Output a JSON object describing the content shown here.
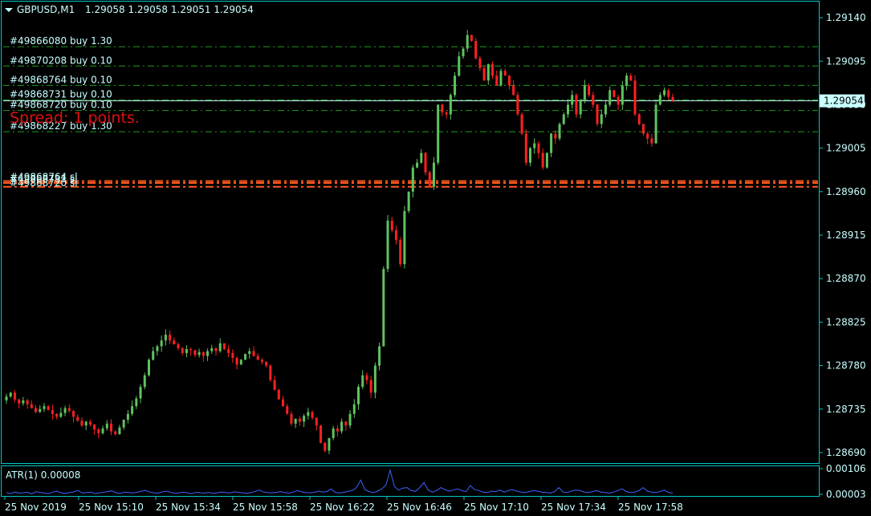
{
  "header": {
    "symbol": "GBPUSD,M1",
    "ohlc": "1.29058 1.29058 1.29051 1.29054"
  },
  "spread_text": "Spread: 1 points.",
  "colors": {
    "frame": "#00c8c8",
    "text": "#c8ffff",
    "bull": "#5fc35f",
    "bear": "#ff2020",
    "order_line": "#1e9e1e",
    "stop_line": "#ff5a1e",
    "spread": "#e01010",
    "atr": "#3c64ff",
    "bid_box_bg": "#c8ffff",
    "bid_box_text": "#000000"
  },
  "orders": [
    {
      "label": "#49866080 buy 1.30",
      "price": 1.2911
    },
    {
      "label": "#49870208 buy 0.10",
      "price": 1.2909
    },
    {
      "label": "#49868764 buy 0.10",
      "price": 1.2907
    },
    {
      "label": "#49868731 buy 0.10",
      "price": 1.29055
    },
    {
      "label": "#49868720 buy 0.10",
      "price": 1.29044
    },
    {
      "label": "#49868227 buy 1.30",
      "price": 1.29022
    }
  ],
  "stops": [
    {
      "label": "#49868764 sl",
      "price": 1.28971
    },
    {
      "label": "#49868731 sl",
      "price": 1.28969
    },
    {
      "label": "#49868720 sl",
      "price": 1.28965
    }
  ],
  "current_price": {
    "value": 1.29054,
    "label": "1.29054"
  },
  "price_ticks": [
    "1.29140",
    "1.29095",
    "1.29050",
    "1.29005",
    "1.28960",
    "1.28915",
    "1.28870",
    "1.28825",
    "1.28780",
    "1.28735",
    "1.28690"
  ],
  "time_ticks": [
    "25 Nov 2019",
    "25 Nov 15:10",
    "25 Nov 15:34",
    "25 Nov 15:58",
    "25 Nov 16:22",
    "25 Nov 16:46",
    "25 Nov 17:10",
    "25 Nov 17:34",
    "25 Nov 17:58"
  ],
  "atr": {
    "label": "ATR(1) 0.00008",
    "ticks": [
      "0.00106",
      "0.00003"
    ]
  },
  "chart_data": {
    "type": "candlestick",
    "title": "GBPUSD,M1",
    "ylim": [
      1.2868,
      1.29155
    ],
    "closes": [
      1.28748,
      1.28752,
      1.28745,
      1.28741,
      1.28744,
      1.2874,
      1.28736,
      1.28732,
      1.28735,
      1.28738,
      1.28734,
      1.2873,
      1.28727,
      1.28731,
      1.28736,
      1.28733,
      1.28727,
      1.28723,
      1.28718,
      1.28722,
      1.28719,
      1.28714,
      1.2871,
      1.28715,
      1.2872,
      1.28712,
      1.28709,
      1.28716,
      1.28724,
      1.2873,
      1.28738,
      1.28746,
      1.28758,
      1.2877,
      1.28786,
      1.28795,
      1.288,
      1.28806,
      1.28812,
      1.28806,
      1.28802,
      1.28798,
      1.28793,
      1.28797,
      1.28796,
      1.28791,
      1.28794,
      1.2879,
      1.28795,
      1.28798,
      1.28795,
      1.28803,
      1.28797,
      1.28793,
      1.28788,
      1.28781,
      1.28786,
      1.28792,
      1.28795,
      1.2879,
      1.28786,
      1.28784,
      1.2878,
      1.28765,
      1.28755,
      1.28745,
      1.28738,
      1.2873,
      1.2872,
      1.28725,
      1.28722,
      1.28728,
      1.28732,
      1.28726,
      1.28718,
      1.287,
      1.28692,
      1.28705,
      1.28715,
      1.28712,
      1.28722,
      1.28718,
      1.2873,
      1.2874,
      1.28758,
      1.2877,
      1.28765,
      1.28752,
      1.2878,
      1.288,
      1.2888,
      1.2893,
      1.2892,
      1.2891,
      1.28885,
      1.2894,
      1.2896,
      1.28985,
      1.2899,
      1.29,
      1.2898,
      1.28965,
      1.2899,
      1.2905,
      1.29042,
      1.2904,
      1.2906,
      1.2908,
      1.291,
      1.29108,
      1.29122,
      1.29116,
      1.29098,
      1.29088,
      1.29075,
      1.29092,
      1.2908,
      1.2907,
      1.29085,
      1.2908,
      1.2907,
      1.2906,
      1.2904,
      1.2902,
      1.2899,
      1.29005,
      1.2901,
      1.29,
      1.28985,
      1.29,
      1.2902,
      1.29015,
      1.2903,
      1.2904,
      1.2905,
      1.2906,
      1.2904,
      1.29055,
      1.2907,
      1.2906,
      1.2905,
      1.2903,
      1.2904,
      1.2905,
      1.29065,
      1.29058,
      1.2905,
      1.2907,
      1.2908,
      1.29075,
      1.2904,
      1.2903,
      1.2902,
      1.29015,
      1.2901,
      1.2905,
      1.2906,
      1.29065,
      1.29058,
      1.29054
    ],
    "atr": [
      0.0001,
      6e-05,
      0.00012,
      8e-05,
      9e-05,
      0.00011,
      5e-05,
      0.00014,
      0.0001,
      8e-05,
      6e-05,
      0.00012,
      0.00016,
      9e-05,
      7e-05,
      0.0001,
      0.00013,
      0.00018,
      8e-05,
      0.0001,
      0.00012,
      6e-05,
      9e-05,
      0.00011,
      0.00014,
      0.00017,
      9e-05,
      7e-05,
      0.00012,
      0.0001,
      8e-05,
      0.00011,
      0.00015,
      0.00019,
      0.00012,
      9e-05,
      8e-05,
      0.00013,
      0.00016,
      0.0001,
      7e-05,
      9e-05,
      0.00012,
      8e-05,
      6e-05,
      0.00011,
      9e-05,
      8e-05,
      0.0001,
      7e-05,
      9e-05,
      0.00012,
      0.0001,
      8e-05,
      0.00013,
      0.00011,
      9e-05,
      7e-05,
      0.0001,
      0.00015,
      0.0002,
      0.00012,
      0.0001,
      9e-05,
      0.00011,
      0.00014,
      0.0001,
      8e-05,
      0.00012,
      0.00018,
      0.00013,
      0.0001,
      9e-05,
      0.00011,
      0.00016,
      0.00012,
      0.00014,
      0.00025,
      0.0001,
      8e-05,
      0.00011,
      0.00015,
      0.00018,
      0.0003,
      0.0006,
      0.00022,
      0.00014,
      0.0001,
      0.00016,
      0.00025,
      0.0004,
      0.001,
      0.00035,
      0.0002,
      0.00028,
      0.0003,
      0.00018,
      0.00015,
      0.0003,
      0.0005,
      0.0002,
      0.00012,
      0.00018,
      0.0003,
      0.00022,
      0.00016,
      0.0002,
      0.00025,
      0.00018,
      0.00014,
      0.00038,
      0.00022,
      0.00018,
      0.00012,
      0.0001,
      0.00016,
      0.00014,
      0.0002,
      0.00012,
      0.00018,
      0.00022,
      0.00016,
      0.00012,
      0.0001,
      0.00014,
      0.00018,
      0.00015,
      0.00012,
      0.0001,
      8e-05,
      0.00014,
      0.0003,
      0.00012,
      0.0001,
      0.00016,
      0.0002,
      0.00018,
      0.00012,
      0.0001,
      0.00014,
      0.00018,
      0.00012,
      0.0001,
      8e-05,
      0.00012,
      0.00018,
      0.00025,
      0.00014,
      0.0001,
      0.00012,
      0.00018,
      0.0003,
      0.00016,
      0.00012,
      0.0001,
      0.00014,
      0.0002,
      0.0001,
      8e-05
    ]
  }
}
